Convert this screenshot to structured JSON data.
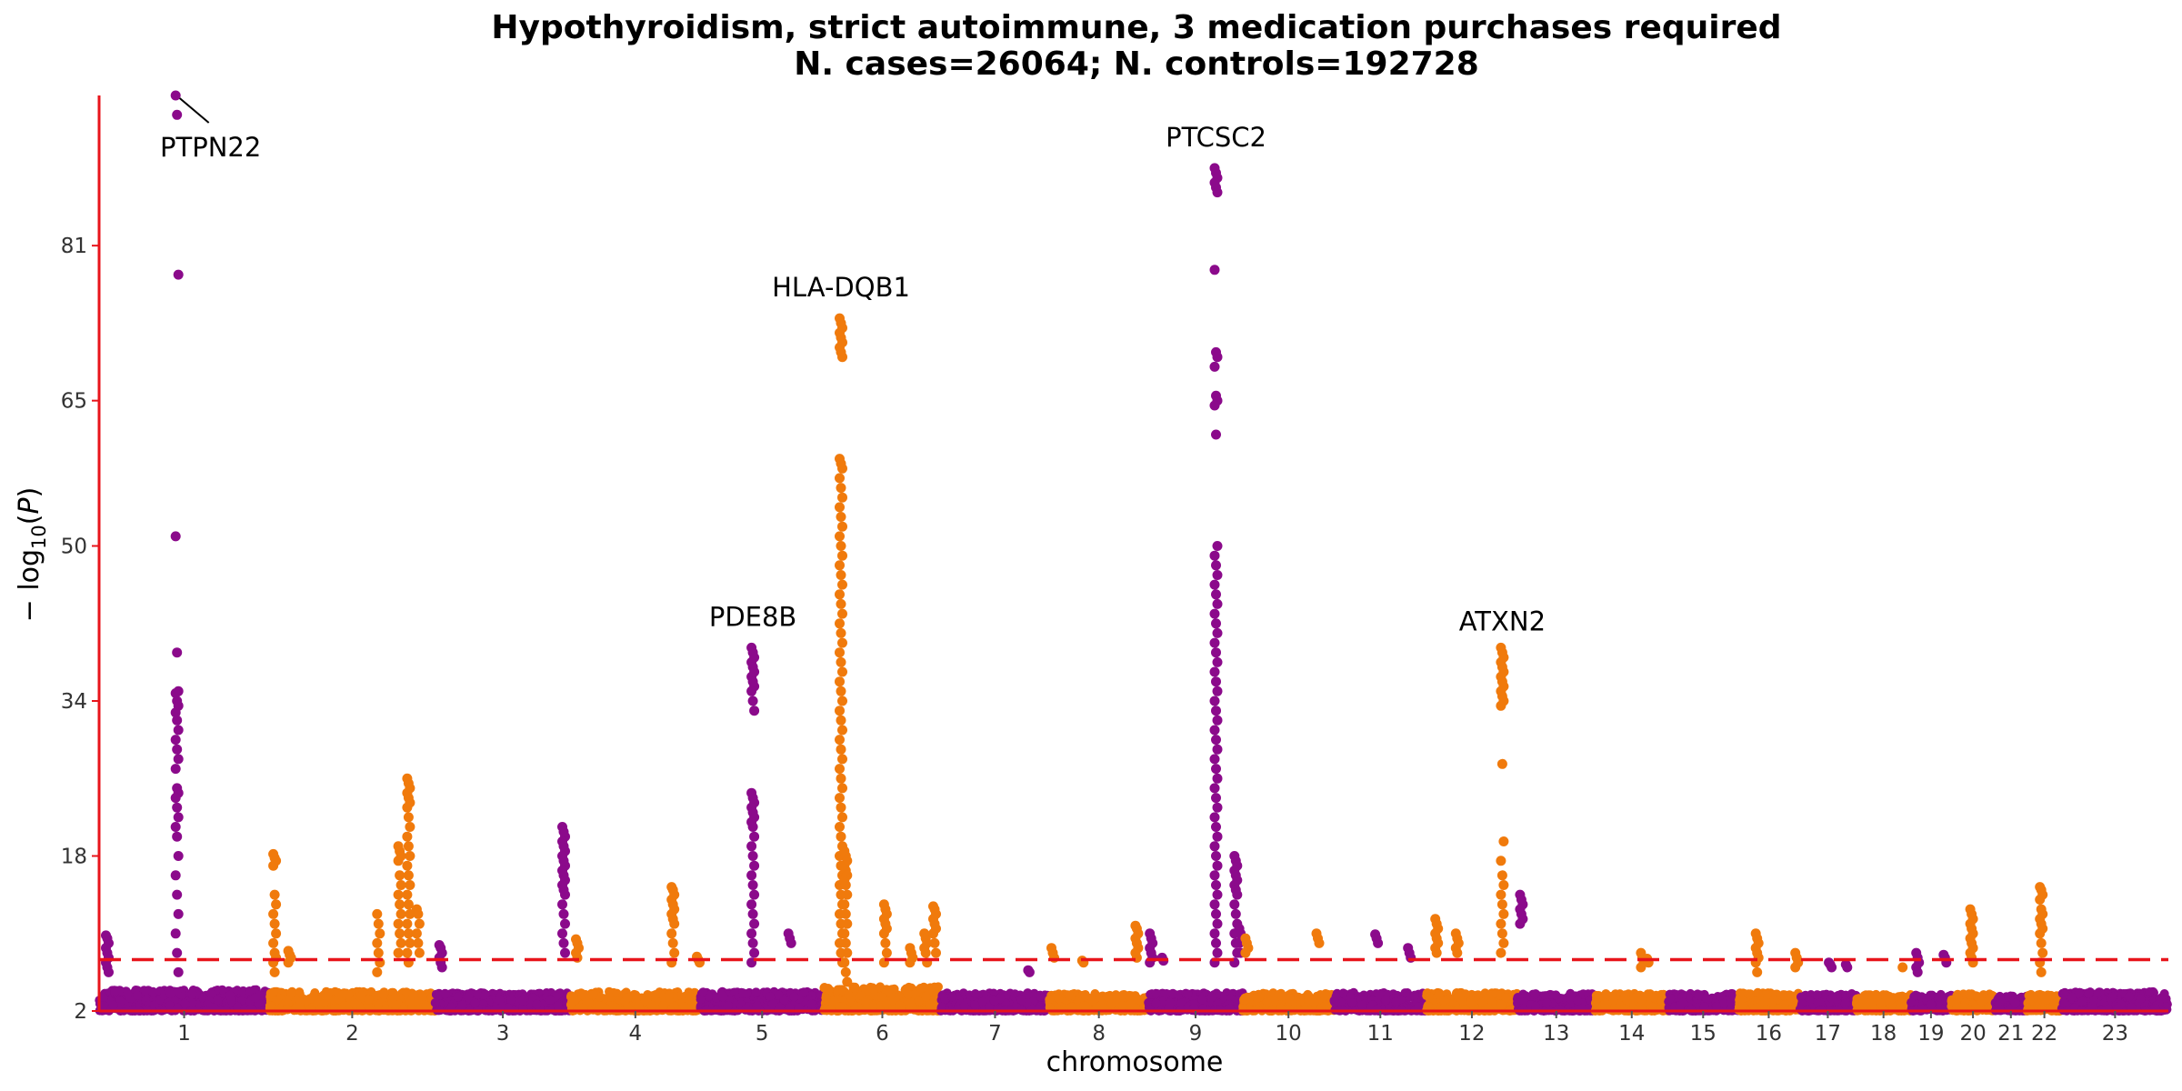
{
  "chart_data": {
    "type": "scatter",
    "subtype": "manhattan",
    "title_line1": "Hypothyroidism, strict autoimmune, 3 medication purchases required",
    "title_line2": "N. cases=26064; N. controls=192728",
    "xlabel": "chromosome",
    "ylabel": "−log10(P)",
    "y_ticks": [
      2,
      18,
      34,
      50,
      65,
      81
    ],
    "ylim": [
      2,
      96.5
    ],
    "significance_line": 7.3,
    "colors": {
      "odd": "#8B0A8B",
      "even": "#F07A0C",
      "axis": "#E8141B",
      "threshold": "#E8141B"
    },
    "chromosomes": [
      "1",
      "2",
      "3",
      "4",
      "5",
      "6",
      "7",
      "8",
      "9",
      "10",
      "11",
      "12",
      "13",
      "14",
      "15",
      "16",
      "17",
      "18",
      "19",
      "20",
      "21",
      "22",
      "23"
    ],
    "chrom_sizes": [
      249,
      243,
      198,
      190,
      181,
      171,
      159,
      145,
      138,
      134,
      135,
      133,
      114,
      107,
      102,
      90,
      83,
      80,
      59,
      64,
      47,
      51,
      156
    ],
    "baseline_noise_max": [
      4.2,
      4.0,
      3.9,
      4.0,
      4.0,
      4.5,
      3.9,
      3.8,
      3.9,
      3.9,
      3.9,
      3.9,
      3.8,
      3.8,
      3.8,
      3.9,
      3.8,
      3.7,
      3.7,
      3.8,
      3.6,
      3.8,
      4.0
    ],
    "peaks": [
      {
        "chrom": "1",
        "pos": 114,
        "values": [
          96.5,
          94.5,
          78,
          51,
          39,
          35,
          34.8,
          34,
          33.5,
          32.8,
          32,
          31,
          30,
          29,
          28,
          27,
          25,
          24.5,
          24,
          23,
          22,
          21,
          20,
          18,
          16,
          14,
          12,
          10,
          8,
          6
        ]
      },
      {
        "chrom": "1",
        "pos": 12,
        "values": [
          9.8,
          9.5,
          9,
          8.5,
          8,
          7.5,
          7,
          6.5,
          6
        ]
      },
      {
        "chrom": "2",
        "pos": 8,
        "values": [
          18.2,
          17.8,
          17.5,
          17,
          14,
          13,
          12,
          11,
          10,
          9,
          8,
          7.5,
          7,
          6
        ]
      },
      {
        "chrom": "2",
        "pos": 30,
        "values": [
          8.2,
          7.8,
          7.5,
          7
        ]
      },
      {
        "chrom": "2",
        "pos": 160,
        "values": [
          12,
          11,
          10,
          9,
          8,
          7,
          6
        ]
      },
      {
        "chrom": "2",
        "pos": 204,
        "values": [
          26,
          25.5,
          25,
          24.5,
          24,
          23.5,
          23,
          22,
          21,
          20,
          19,
          18,
          17,
          16,
          15,
          14,
          13,
          12,
          11,
          10,
          9,
          8,
          7
        ]
      },
      {
        "chrom": "2",
        "pos": 191,
        "values": [
          19,
          18.5,
          18,
          17.5,
          16,
          15,
          14,
          13,
          12,
          11,
          10,
          9,
          8
        ]
      },
      {
        "chrom": "2",
        "pos": 218,
        "values": [
          12.5,
          12,
          11,
          10,
          9,
          8
        ]
      },
      {
        "chrom": "3",
        "pos": 8,
        "values": [
          8.8,
          8.5,
          8,
          7.5,
          7,
          6.5
        ]
      },
      {
        "chrom": "3",
        "pos": 188,
        "values": [
          21,
          20.5,
          20,
          19.5,
          19,
          18.5,
          18,
          17.5,
          17,
          16.5,
          16,
          15.5,
          15,
          14.5,
          14,
          13,
          12,
          11,
          10,
          9,
          8
        ]
      },
      {
        "chrom": "4",
        "pos": 10,
        "values": [
          9.4,
          9,
          8.5,
          8,
          7.5
        ]
      },
      {
        "chrom": "4",
        "pos": 150,
        "values": [
          14.8,
          14.5,
          14,
          13.5,
          13,
          12.5,
          12,
          11.5,
          11,
          10,
          9,
          8,
          7
        ]
      },
      {
        "chrom": "4",
        "pos": 187,
        "values": [
          7.6,
          7.3,
          7
        ]
      },
      {
        "chrom": "5",
        "pos": 35,
        "values": [
          3.5
        ]
      },
      {
        "chrom": "5",
        "pos": 77,
        "values": [
          39.5,
          39,
          38.5,
          38,
          37.5,
          37,
          36.5,
          36,
          35.5,
          35,
          34,
          33,
          24.5,
          24,
          23.5,
          23,
          22.5,
          22,
          21.5,
          21,
          20,
          19,
          18,
          17,
          16,
          15,
          14,
          13,
          12,
          11,
          10,
          9,
          8,
          7
        ]
      },
      {
        "chrom": "5",
        "pos": 131,
        "values": [
          10,
          9.5,
          9
        ]
      },
      {
        "chrom": "6",
        "pos": 25,
        "values": [
          73.5,
          73,
          72.5,
          72,
          71.5,
          71,
          70.5,
          70,
          69.5,
          59,
          58.5,
          58,
          57,
          56,
          55,
          54,
          53,
          52,
          51,
          50,
          49,
          48,
          47,
          46,
          45,
          44,
          43,
          42,
          41,
          40,
          39,
          38,
          37,
          36,
          35,
          34,
          33,
          32,
          31,
          30,
          29,
          28,
          27,
          26,
          25,
          24,
          23,
          22,
          21,
          20,
          19,
          18,
          17,
          16,
          15,
          14,
          13,
          12,
          11,
          10,
          9,
          8,
          7
        ]
      },
      {
        "chrom": "6",
        "pos": 32,
        "values": [
          18.5,
          18,
          17.5,
          17,
          16.5,
          16,
          15.5,
          15,
          14,
          13,
          12,
          11,
          10,
          9,
          8,
          7,
          6,
          5
        ]
      },
      {
        "chrom": "6",
        "pos": 90,
        "values": [
          13,
          12.5,
          12,
          11.5,
          11,
          10.5,
          10,
          9,
          8,
          7
        ]
      },
      {
        "chrom": "6",
        "pos": 128,
        "values": [
          8.5,
          8,
          7.5,
          7
        ]
      },
      {
        "chrom": "6",
        "pos": 149,
        "values": [
          10,
          9.5,
          9,
          8.5,
          8,
          7
        ]
      },
      {
        "chrom": "6",
        "pos": 162,
        "values": [
          12.8,
          12.5,
          12,
          11.5,
          11,
          10.5,
          10,
          9,
          8
        ]
      },
      {
        "chrom": "7",
        "pos": 130,
        "values": [
          6.2,
          6
        ]
      },
      {
        "chrom": "8",
        "pos": 5,
        "values": [
          8.5,
          8,
          7.5
        ]
      },
      {
        "chrom": "8",
        "pos": 50,
        "values": [
          7.2,
          7
        ]
      },
      {
        "chrom": "8",
        "pos": 128,
        "values": [
          10.8,
          10.5,
          10,
          9.5,
          9,
          8.5,
          8,
          7.5
        ]
      },
      {
        "chrom": "9",
        "pos": 4,
        "values": [
          10,
          9.5,
          9,
          8.5,
          8,
          7.5,
          7
        ]
      },
      {
        "chrom": "9",
        "pos": 22,
        "values": [
          7.5,
          7.2
        ]
      },
      {
        "chrom": "9",
        "pos": 99,
        "values": [
          89,
          88.5,
          88,
          87.5,
          87,
          86.5,
          78.5,
          70,
          69.5,
          68.5,
          65.5,
          65,
          64.5,
          61.5,
          50,
          49,
          48,
          47,
          46,
          45,
          44,
          43,
          42,
          41,
          40,
          39,
          38,
          37,
          36,
          35,
          34,
          33,
          32,
          31,
          30,
          29,
          28,
          27,
          26,
          25,
          24,
          23,
          22,
          21,
          20,
          19,
          18,
          17,
          16,
          15,
          14,
          13,
          12,
          11,
          10,
          9,
          8,
          7
        ]
      },
      {
        "chrom": "9",
        "pos": 128,
        "values": [
          18,
          17.5,
          17,
          16.5,
          16,
          15.5,
          15,
          14.5,
          14,
          13,
          12,
          11,
          10,
          9,
          8,
          7
        ]
      },
      {
        "chrom": "9",
        "pos": 135,
        "values": [
          10.5,
          10,
          9.5,
          9,
          8
        ]
      },
      {
        "chrom": "10",
        "pos": 6,
        "values": [
          9.5,
          9,
          8.5,
          8
        ]
      },
      {
        "chrom": "10",
        "pos": 110,
        "values": [
          10,
          9.5,
          9
        ]
      },
      {
        "chrom": "11",
        "pos": 62,
        "values": [
          9.9,
          9.5,
          9
        ]
      },
      {
        "chrom": "11",
        "pos": 110,
        "values": [
          8.5,
          8,
          7.5
        ]
      },
      {
        "chrom": "12",
        "pos": 15,
        "values": [
          11.5,
          11,
          10.5,
          10,
          9.5,
          9,
          8.5,
          8
        ]
      },
      {
        "chrom": "12",
        "pos": 45,
        "values": [
          10,
          9.5,
          9,
          8.5,
          8
        ]
      },
      {
        "chrom": "12",
        "pos": 111,
        "values": [
          39.5,
          39,
          38.5,
          38,
          37.5,
          37,
          36.5,
          36,
          35.5,
          35,
          34.5,
          34,
          33.5,
          27.5,
          19.5,
          17.5,
          16,
          15,
          14,
          13,
          12,
          11,
          10,
          9,
          8
        ]
      },
      {
        "chrom": "13",
        "pos": 6,
        "values": [
          14,
          13.5,
          13,
          12.5,
          12,
          11.5,
          11
        ]
      },
      {
        "chrom": "14",
        "pos": 69,
        "values": [
          8,
          7.5,
          7,
          6.5
        ]
      },
      {
        "chrom": "14",
        "pos": 78,
        "values": [
          7.4,
          7
        ]
      },
      {
        "chrom": "16",
        "pos": 28,
        "values": [
          10,
          9.5,
          9,
          8.5,
          8,
          7.5,
          7,
          6
        ]
      },
      {
        "chrom": "16",
        "pos": 86,
        "values": [
          8,
          7.5,
          7,
          6.5
        ]
      },
      {
        "chrom": "17",
        "pos": 45,
        "values": [
          7,
          6.8,
          6.5
        ]
      },
      {
        "chrom": "17",
        "pos": 70,
        "values": [
          6.8,
          6.5
        ]
      },
      {
        "chrom": "18",
        "pos": 70,
        "values": [
          6.5
        ]
      },
      {
        "chrom": "19",
        "pos": 10,
        "values": [
          8,
          7.5,
          7,
          6.5,
          6
        ]
      },
      {
        "chrom": "19",
        "pos": 50,
        "values": [
          7.8,
          7.5,
          7
        ]
      },
      {
        "chrom": "20",
        "pos": 30,
        "values": [
          12.5,
          12,
          11.5,
          11,
          10.5,
          10,
          9.5,
          9,
          8.5,
          8,
          7.5,
          7
        ]
      },
      {
        "chrom": "22",
        "pos": 21,
        "values": [
          14.8,
          14.5,
          14,
          13.5,
          12.5,
          12,
          11.5,
          11,
          10.5,
          10,
          9,
          8,
          7,
          6
        ]
      }
    ],
    "annotations": [
      {
        "label": "PTPN22",
        "chrom": "1",
        "pos": 114,
        "y": 96.5,
        "dx": 37,
        "dy": 67,
        "leader": true
      },
      {
        "label": "HLA-DQB1",
        "chrom": "6",
        "pos": 25,
        "y": 73.5,
        "dx": 0,
        "dy": -24
      },
      {
        "label": "PTCSC2",
        "chrom": "9",
        "pos": 99,
        "y": 89,
        "dx": 0,
        "dy": -24
      },
      {
        "label": "PDE8B",
        "chrom": "5",
        "pos": 77,
        "y": 39.5,
        "dx": 0,
        "dy": -24
      },
      {
        "label": "ATXN2",
        "chrom": "12",
        "pos": 111,
        "y": 39.5,
        "dx": 0,
        "dy": -19
      }
    ]
  }
}
